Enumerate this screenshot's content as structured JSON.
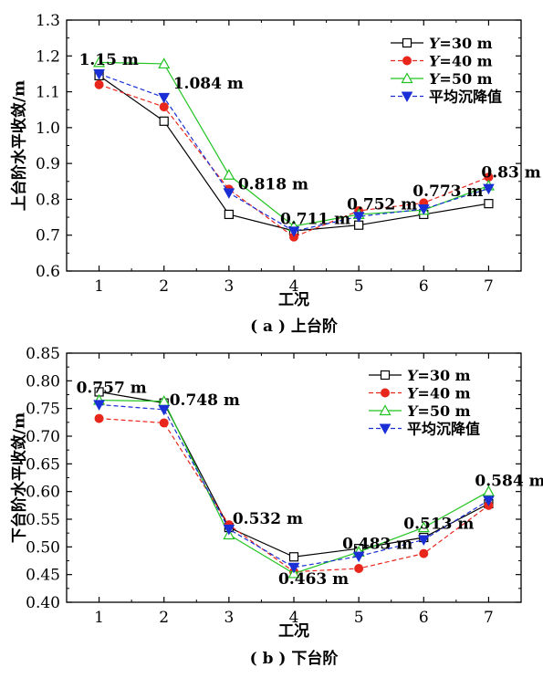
{
  "chart_data": [
    {
      "type": "line",
      "caption": "( a ) 上台阶",
      "xlabel": "工况",
      "ylabel": "上台阶水平收敛/m",
      "x": [
        1,
        2,
        3,
        4,
        5,
        6,
        7
      ],
      "xlim": [
        0.5,
        7.5
      ],
      "ylim": [
        0.6,
        1.3
      ],
      "yticks": [
        "0.6",
        "0.7",
        "0.8",
        "0.9",
        "1.0",
        "1.1",
        "1.2",
        "1.3"
      ],
      "series": [
        {
          "name": "Y=30 m",
          "color": "#000000",
          "marker": "square",
          "dash": "solid",
          "values": [
            1.145,
            1.018,
            0.758,
            0.712,
            0.728,
            0.758,
            0.788
          ]
        },
        {
          "name": "Y=40 m",
          "color": "#e8261c",
          "marker": "circle",
          "dash": "dashed",
          "values": [
            1.12,
            1.058,
            0.828,
            0.695,
            0.768,
            0.79,
            0.862
          ]
        },
        {
          "name": "Y=50 m",
          "color": "#22c422",
          "marker": "triangle-up",
          "dash": "solid",
          "values": [
            1.182,
            1.178,
            0.868,
            0.725,
            0.758,
            0.77,
            0.838
          ]
        },
        {
          "name": "平均沉降值",
          "color": "#1a2fd6",
          "marker": "triangle-down",
          "dash": "dashed",
          "values": [
            1.15,
            1.084,
            0.818,
            0.711,
            0.752,
            0.773,
            0.83
          ]
        }
      ],
      "annotations": [
        {
          "text": "1.15 m",
          "x": 1,
          "y": 1.15
        },
        {
          "text": "1.084 m",
          "x": 2,
          "y": 1.084
        },
        {
          "text": "0.818 m",
          "x": 3,
          "y": 0.818
        },
        {
          "text": "0.711 m",
          "x": 4,
          "y": 0.711
        },
        {
          "text": "0.752 m",
          "x": 5,
          "y": 0.752
        },
        {
          "text": "0.773 m",
          "x": 6,
          "y": 0.773
        },
        {
          "text": "0.83 m",
          "x": 7,
          "y": 0.83
        }
      ],
      "legend_position": "top-right"
    },
    {
      "type": "line",
      "caption": "( b ) 下台阶",
      "xlabel": "工况",
      "ylabel": "下台阶水平收敛/m",
      "x": [
        1,
        2,
        3,
        4,
        5,
        6,
        7
      ],
      "xlim": [
        0.5,
        7.5
      ],
      "ylim": [
        0.4,
        0.85
      ],
      "yticks": [
        "0.40",
        "0.45",
        "0.50",
        "0.55",
        "0.60",
        "0.65",
        "0.70",
        "0.75",
        "0.80",
        "0.85"
      ],
      "series": [
        {
          "name": "Y=30 m",
          "color": "#000000",
          "marker": "square",
          "dash": "solid",
          "values": [
            0.78,
            0.76,
            0.535,
            0.482,
            0.497,
            0.517,
            0.578
          ]
        },
        {
          "name": "Y=40 m",
          "color": "#e8261c",
          "marker": "circle",
          "dash": "dashed",
          "values": [
            0.732,
            0.724,
            0.54,
            0.455,
            0.461,
            0.488,
            0.575
          ]
        },
        {
          "name": "Y=50 m",
          "color": "#22c422",
          "marker": "triangle-up",
          "dash": "solid",
          "values": [
            0.765,
            0.763,
            0.522,
            0.452,
            0.491,
            0.535,
            0.6
          ]
        },
        {
          "name": "平均沉降值",
          "color": "#1a2fd6",
          "marker": "triangle-down",
          "dash": "dashed",
          "values": [
            0.757,
            0.748,
            0.532,
            0.463,
            0.483,
            0.513,
            0.584
          ]
        }
      ],
      "annotations": [
        {
          "text": "0.757 m",
          "x": 1,
          "y": 0.757
        },
        {
          "text": "0.748 m",
          "x": 2,
          "y": 0.748
        },
        {
          "text": "0.532 m",
          "x": 3,
          "y": 0.532
        },
        {
          "text": "0.463 m",
          "x": 4,
          "y": 0.463
        },
        {
          "text": "0.483 m",
          "x": 5,
          "y": 0.483
        },
        {
          "text": "0.513 m",
          "x": 6,
          "y": 0.513
        },
        {
          "text": "0.584 m",
          "x": 7,
          "y": 0.584
        }
      ],
      "legend_position": "top-right"
    }
  ]
}
